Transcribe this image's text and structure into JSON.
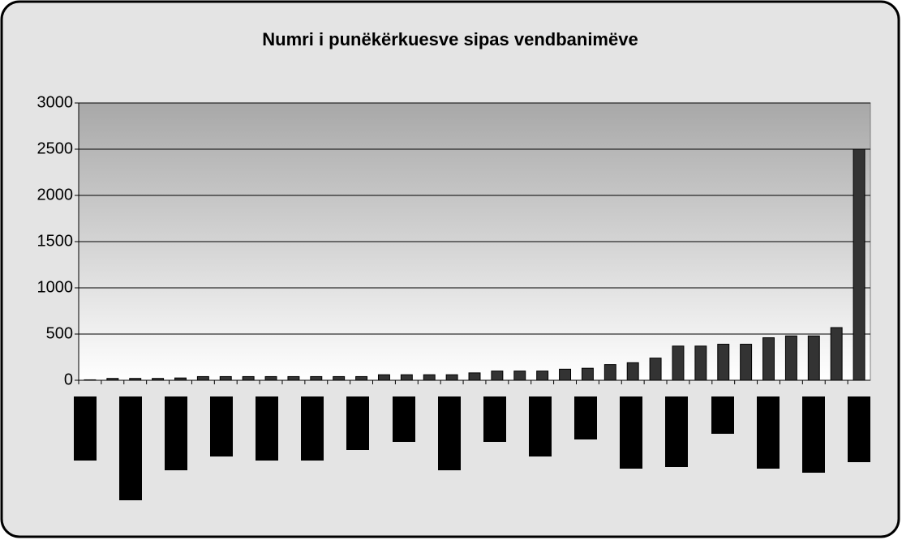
{
  "chart_data": {
    "type": "bar",
    "title": "Numri i punëkërkuesve sipas vendbanimëve",
    "categories": [
      null,
      null,
      null,
      null,
      null,
      null,
      null,
      null,
      null,
      null,
      null,
      null,
      null,
      null,
      null,
      null,
      null,
      null,
      null,
      null,
      null,
      null,
      null,
      null,
      null,
      null,
      null,
      null,
      null,
      null,
      null,
      null,
      null,
      null,
      null
    ],
    "values": [
      5,
      20,
      20,
      20,
      25,
      40,
      40,
      40,
      40,
      40,
      40,
      40,
      40,
      60,
      60,
      60,
      60,
      80,
      100,
      100,
      100,
      120,
      130,
      170,
      190,
      240,
      370,
      370,
      390,
      390,
      460,
      480,
      480,
      570,
      2500
    ],
    "color": "#333333",
    "ylim": [
      0,
      3000
    ],
    "yticks": [
      0,
      500,
      1000,
      1500,
      2000,
      2500,
      3000
    ],
    "grid": true
  }
}
